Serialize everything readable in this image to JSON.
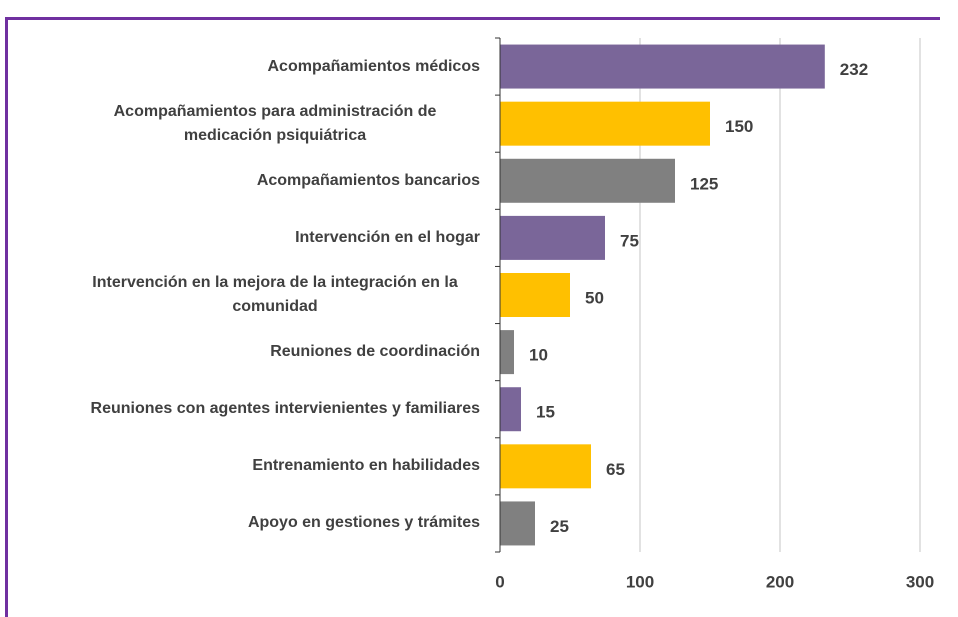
{
  "chart_data": {
    "type": "bar",
    "orientation": "horizontal",
    "categories": [
      "Acompañamientos médicos",
      "Acompañamientos para administración de medicación psiquiátrica",
      "Acompañamientos bancarios",
      "Intervención en el hogar",
      "Intervención en la mejora de la integración en la comunidad",
      "Reuniones de coordinación",
      "Reuniones con agentes intervienientes y familiares",
      "Entrenamiento en habilidades",
      "Apoyo en gestiones y trámites"
    ],
    "values": [
      232,
      150,
      125,
      75,
      50,
      10,
      15,
      65,
      25
    ],
    "colors": [
      "#7a6699",
      "#ffc000",
      "#808080",
      "#7a6699",
      "#ffc000",
      "#808080",
      "#7a6699",
      "#ffc000",
      "#808080"
    ],
    "xlim": [
      0,
      300
    ],
    "xticks": [
      0,
      100,
      200,
      300
    ],
    "grid": true
  }
}
